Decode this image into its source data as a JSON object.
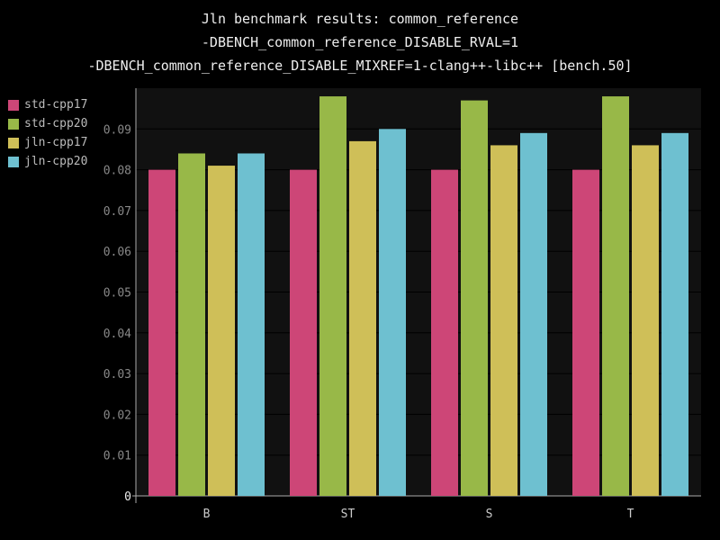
{
  "chart_data": {
    "type": "bar",
    "title": [
      "Jln benchmark results: common_reference",
      "-DBENCH_common_reference_DISABLE_RVAL=1",
      "-DBENCH_common_reference_DISABLE_MIXREF=1-clang++-libc++ [bench.50]"
    ],
    "categories": [
      "B",
      "ST",
      "S",
      "T"
    ],
    "series": [
      {
        "name": "std-cpp17",
        "color": "#cd4677",
        "values": [
          0.08,
          0.08,
          0.08,
          0.08
        ]
      },
      {
        "name": "std-cpp20",
        "color": "#98b848",
        "values": [
          0.084,
          0.098,
          0.097,
          0.098
        ]
      },
      {
        "name": "jln-cpp17",
        "color": "#cfbf58",
        "values": [
          0.081,
          0.087,
          0.086,
          0.086
        ]
      },
      {
        "name": "jln-cpp20",
        "color": "#6ec0d0",
        "values": [
          0.084,
          0.09,
          0.089,
          0.089
        ]
      }
    ],
    "ylim": [
      0,
      0.1
    ],
    "yticks": [
      "0",
      "0.01",
      "0.02",
      "0.03",
      "0.04",
      "0.05",
      "0.06",
      "0.07",
      "0.08",
      "0.09"
    ],
    "xlabel": "",
    "ylabel": "",
    "grid": true,
    "legend_position": "top-left",
    "plot_background": "#111111",
    "page_background": "#000000"
  }
}
